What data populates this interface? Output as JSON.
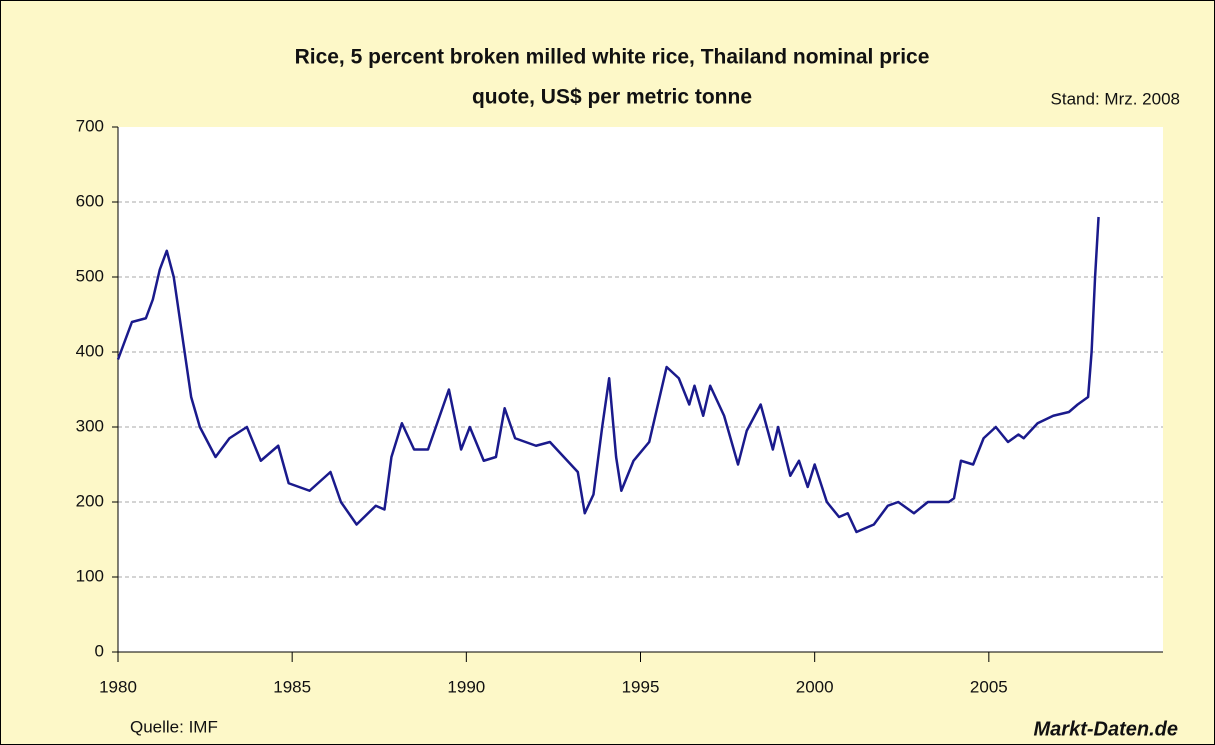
{
  "chart_data": {
    "type": "line",
    "title": [
      "Rice, 5 percent broken milled white rice, Thailand nominal price",
      "quote, US$ per metric tonne"
    ],
    "note": "Stand: Mrz. 2008",
    "source": "Quelle: IMF",
    "brand": "Markt-Daten.de",
    "x": [
      1980.0,
      1980.4,
      1980.8,
      1981.0,
      1981.2,
      1981.4,
      1981.6,
      1982.1,
      1982.35,
      1982.8,
      1983.2,
      1983.7,
      1984.1,
      1984.6,
      1984.9,
      1985.5,
      1986.1,
      1986.4,
      1986.85,
      1987.4,
      1987.65,
      1987.85,
      1988.15,
      1988.5,
      1988.9,
      1989.5,
      1989.85,
      1990.1,
      1990.5,
      1990.85,
      1991.1,
      1991.4,
      1992.0,
      1992.4,
      1992.8,
      1993.2,
      1993.4,
      1993.65,
      1993.9,
      1994.1,
      1994.3,
      1994.45,
      1994.8,
      1995.25,
      1995.55,
      1995.75,
      1996.1,
      1996.4,
      1996.55,
      1996.8,
      1997.0,
      1997.4,
      1997.8,
      1998.05,
      1998.45,
      1998.8,
      1998.95,
      1999.3,
      1999.55,
      1999.8,
      2000.0,
      2000.35,
      2000.7,
      2000.95,
      2001.2,
      2001.7,
      2002.1,
      2002.4,
      2002.85,
      2003.25,
      2003.85,
      2004.0,
      2004.2,
      2004.55,
      2004.85,
      2005.2,
      2005.55,
      2005.85,
      2006.0,
      2006.4,
      2006.85,
      2007.3,
      2007.55,
      2007.85,
      2007.95,
      2008.05,
      2008.15
    ],
    "series": [
      {
        "color": "#1a1a8c",
        "values": [
          390,
          440,
          445,
          470,
          510,
          535,
          500,
          340,
          300,
          260,
          285,
          300,
          255,
          275,
          225,
          215,
          240,
          200,
          170,
          195,
          190,
          260,
          305,
          270,
          270,
          350,
          270,
          300,
          255,
          260,
          325,
          285,
          275,
          280,
          260,
          240,
          185,
          210,
          300,
          365,
          260,
          215,
          255,
          280,
          340,
          380,
          365,
          330,
          355,
          315,
          355,
          315,
          250,
          295,
          330,
          270,
          300,
          235,
          255,
          220,
          250,
          200,
          180,
          185,
          160,
          170,
          195,
          200,
          185,
          200,
          200,
          205,
          255,
          250,
          285,
          300,
          280,
          290,
          285,
          305,
          315,
          320,
          330,
          340,
          400,
          500,
          580
        ]
      }
    ],
    "xlim": [
      1980,
      2010
    ],
    "xticks": [
      1980,
      1985,
      1990,
      1995,
      2000,
      2005
    ],
    "ylim": [
      0,
      700
    ],
    "yticks": [
      0,
      100,
      200,
      300,
      400,
      500,
      600,
      700
    ],
    "grid": true
  }
}
